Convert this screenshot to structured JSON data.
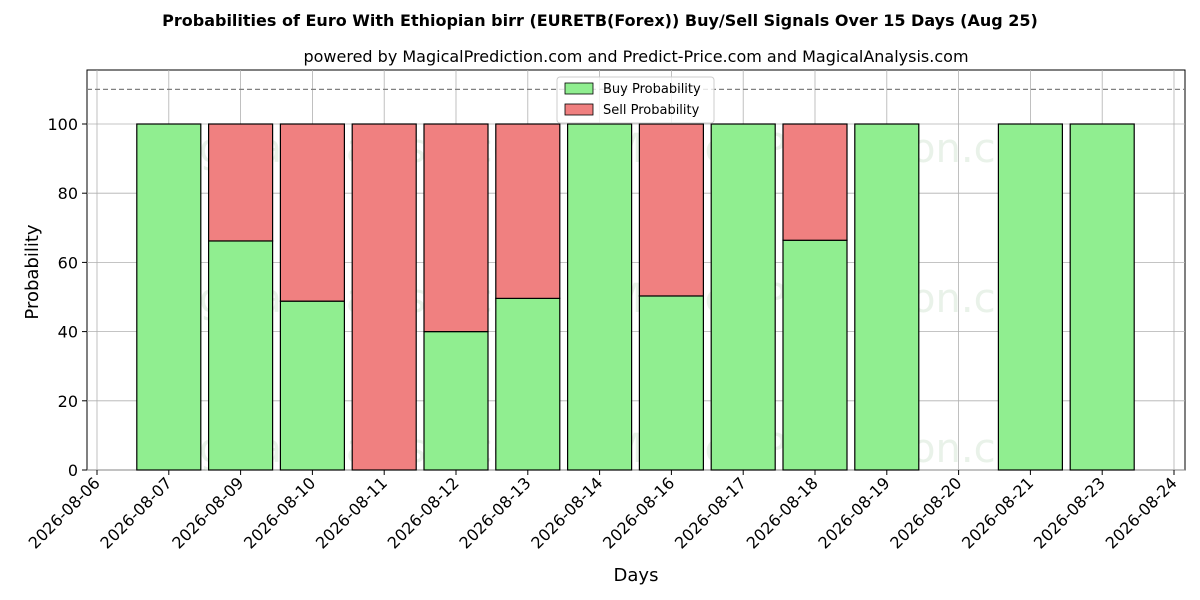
{
  "chart_data": {
    "type": "bar",
    "title": "Probabilities of Euro With Ethiopian birr (EURETB(Forex)) Buy/Sell Signals Over 15 Days (Aug 25)",
    "subtitle": "powered by MagicalPrediction.com and Predict-Price.com and MagicalAnalysis.com",
    "xlabel": "Days",
    "ylabel": "Probability",
    "ylim": [
      0,
      115
    ],
    "yticks": [
      0,
      20,
      40,
      60,
      80,
      100
    ],
    "reference_line": 110,
    "grid": true,
    "legend_position": "top-center",
    "stacked": true,
    "x_tick_labels": [
      "2026-08-06",
      "2026-08-07",
      "2026-08-09",
      "2026-08-10",
      "2026-08-11",
      "2026-08-12",
      "2026-08-13",
      "2026-08-14",
      "2026-08-16",
      "2026-08-17",
      "2026-08-18",
      "2026-08-19",
      "2026-08-20",
      "2026-08-21",
      "2026-08-23",
      "2026-08-24"
    ],
    "categories": [
      "2026-08-07",
      "2026-08-09",
      "2026-08-10",
      "2026-08-11",
      "2026-08-12",
      "2026-08-13",
      "2026-08-14",
      "2026-08-16",
      "2026-08-17",
      "2026-08-18",
      "2026-08-19",
      "2026-08-21",
      "2026-08-23"
    ],
    "series": [
      {
        "name": "Buy Probability",
        "color": "#90ee90",
        "values": [
          100,
          66.2,
          48.8,
          0,
          40,
          49.6,
          100,
          50.3,
          100,
          66.4,
          100,
          100,
          100
        ]
      },
      {
        "name": "Sell Probability",
        "color": "#f08080",
        "values": [
          0,
          33.8,
          51.2,
          100,
          60,
          50.4,
          0,
          49.7,
          0,
          33.6,
          0,
          0,
          0
        ]
      }
    ]
  },
  "watermarks": [
    "MagicalAnalysis.com",
    "MagicalPrediction.com"
  ]
}
